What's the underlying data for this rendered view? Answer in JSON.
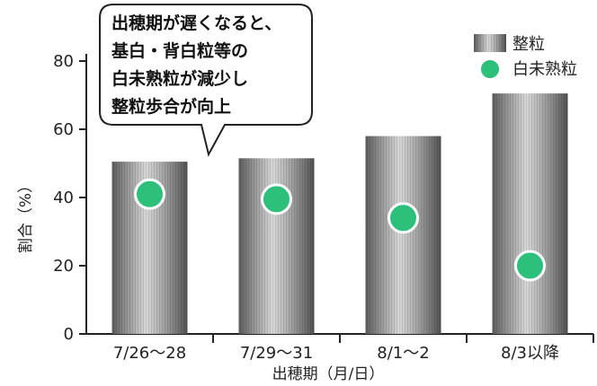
{
  "chart_data": {
    "type": "bar",
    "categories": [
      "7/26～28",
      "7/29～31",
      "8/1～2",
      "8/3以降"
    ],
    "series": [
      {
        "name": "整粒",
        "kind": "bar",
        "values": [
          50.5,
          51.5,
          58,
          70.5
        ]
      },
      {
        "name": "白未熟粒",
        "kind": "point",
        "values": [
          41,
          39.5,
          34,
          20
        ]
      }
    ],
    "xlabel": "出穂期（月/日）",
    "ylabel": "割合（%）",
    "ylim": [
      0,
      90
    ],
    "yticks": [
      0,
      20,
      40,
      60,
      80
    ],
    "legend_position": "top-right",
    "colors": {
      "bar": "#8a8a8a",
      "point": "#2cc07a"
    },
    "annotation": [
      "出穂期が遅くなると、",
      "基白・背白粒等の",
      "白未熟粒が減少し",
      "整粒歩合が向上"
    ]
  }
}
